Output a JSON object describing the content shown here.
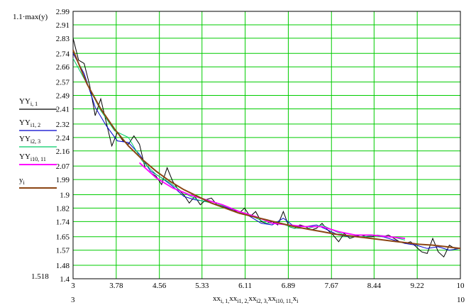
{
  "chart_data": {
    "type": "line",
    "title": "",
    "y_top_label": "1.1·max(y)",
    "y_bottom_label": "1.518",
    "x_left_label": "3",
    "x_right_label": "10",
    "x_axis_label": {
      "parts": [
        {
          "base": "xx",
          "sub": "i, 1"
        },
        {
          "base": "xx",
          "sub": "i1, 2"
        },
        {
          "base": "xx",
          "sub": "i2, 3"
        },
        {
          "base": "xx",
          "sub": "i10, 11"
        },
        {
          "base": "x",
          "sub": "i"
        }
      ]
    },
    "xlim": [
      3,
      10
    ],
    "ylim": [
      1.4,
      2.99
    ],
    "x_ticks": [
      "3",
      "3.78",
      "4.56",
      "5.33",
      "6.11",
      "6.89",
      "7.67",
      "8.44",
      "9.22",
      "10"
    ],
    "y_ticks": [
      "2.99",
      "2.91",
      "2.83",
      "2.74",
      "2.66",
      "2.57",
      "2.49",
      "2.41",
      "2.32",
      "2.24",
      "2.16",
      "2.07",
      "1.99",
      "1.9",
      "1.82",
      "1.74",
      "1.65",
      "1.57",
      "1.48",
      "1.4"
    ],
    "grid": true,
    "legend_position": "left",
    "series": [
      {
        "name": "YY",
        "sub": "i, 1",
        "color": "#000000",
        "x": [
          3.0,
          3.1,
          3.2,
          3.3,
          3.4,
          3.5,
          3.6,
          3.7,
          3.8,
          3.9,
          4.0,
          4.1,
          4.2,
          4.3,
          4.4,
          4.5,
          4.6,
          4.7,
          4.8,
          4.9,
          5.0,
          5.1,
          5.2,
          5.3,
          5.4,
          5.5,
          5.6,
          5.7,
          5.8,
          5.9,
          6.0,
          6.1,
          6.2,
          6.3,
          6.4,
          6.5,
          6.6,
          6.7,
          6.8,
          6.9,
          7.0,
          7.1,
          7.2,
          7.3,
          7.4,
          7.5,
          7.6,
          7.7,
          7.8,
          7.9,
          8.0,
          8.1,
          8.2,
          8.3,
          8.4,
          8.5,
          8.6,
          8.7,
          8.8,
          8.9,
          9.0,
          9.1,
          9.2,
          9.3,
          9.4,
          9.5,
          9.6,
          9.7,
          9.8,
          9.9,
          10.0
        ],
        "y": [
          2.83,
          2.7,
          2.68,
          2.55,
          2.37,
          2.47,
          2.33,
          2.19,
          2.27,
          2.22,
          2.2,
          2.25,
          2.2,
          2.06,
          2.03,
          2.01,
          1.96,
          2.06,
          1.98,
          1.93,
          1.9,
          1.85,
          1.89,
          1.84,
          1.87,
          1.88,
          1.84,
          1.83,
          1.82,
          1.81,
          1.79,
          1.82,
          1.77,
          1.8,
          1.74,
          1.73,
          1.74,
          1.72,
          1.8,
          1.71,
          1.7,
          1.72,
          1.71,
          1.69,
          1.7,
          1.73,
          1.69,
          1.66,
          1.62,
          1.67,
          1.64,
          1.65,
          1.66,
          1.65,
          1.65,
          1.66,
          1.65,
          1.66,
          1.64,
          1.62,
          1.61,
          1.62,
          1.59,
          1.56,
          1.55,
          1.64,
          1.56,
          1.53,
          1.6,
          1.58,
          1.58
        ]
      },
      {
        "name": "YY",
        "sub": "i1, 2",
        "color": "#0000cc",
        "x": [
          3.0,
          3.2,
          3.4,
          3.6,
          3.8,
          4.0,
          4.2,
          4.4,
          4.6,
          4.8,
          5.0,
          5.2,
          5.4,
          5.6,
          5.8,
          6.0,
          6.2,
          6.4,
          6.6,
          6.8,
          7.0,
          7.2,
          7.4,
          7.6,
          7.8,
          8.0,
          8.2,
          8.4,
          8.6,
          8.8,
          9.0,
          9.2,
          9.4,
          9.6,
          9.8,
          10.0
        ],
        "y": [
          2.74,
          2.62,
          2.42,
          2.31,
          2.22,
          2.21,
          2.14,
          2.04,
          2.0,
          1.95,
          1.89,
          1.87,
          1.86,
          1.84,
          1.82,
          1.8,
          1.77,
          1.73,
          1.72,
          1.76,
          1.71,
          1.71,
          1.72,
          1.69,
          1.66,
          1.65,
          1.66,
          1.66,
          1.65,
          1.63,
          1.61,
          1.6,
          1.58,
          1.59,
          1.57,
          1.58
        ]
      },
      {
        "name": "YY",
        "sub": "i2, 3",
        "color": "#00cc66",
        "x": [
          3.0,
          3.25,
          3.5,
          3.75,
          4.0,
          4.25,
          4.5,
          4.75,
          5.0,
          5.25,
          5.5,
          5.75,
          6.0,
          6.25,
          6.5,
          6.75,
          7.0,
          7.25,
          7.5,
          7.75,
          8.0,
          8.25,
          8.5,
          8.75,
          9.0
        ],
        "y": [
          2.71,
          2.56,
          2.4,
          2.28,
          2.24,
          2.1,
          2.02,
          1.97,
          1.91,
          1.87,
          1.85,
          1.83,
          1.8,
          1.77,
          1.73,
          1.73,
          1.7,
          1.7,
          1.72,
          1.68,
          1.65,
          1.65,
          1.66,
          1.65,
          1.63
        ]
      },
      {
        "name": "YY",
        "sub": "i10, 11",
        "color": "#ff00ff",
        "x": [
          4.2,
          4.5,
          4.8,
          5.1,
          5.4,
          5.7,
          6.0,
          6.3,
          6.6,
          6.9,
          7.2,
          7.5,
          7.8,
          8.1,
          8.4,
          8.7,
          9.0
        ],
        "y": [
          2.09,
          2.0,
          1.94,
          1.9,
          1.87,
          1.84,
          1.8,
          1.77,
          1.73,
          1.72,
          1.71,
          1.71,
          1.68,
          1.66,
          1.66,
          1.65,
          1.64
        ]
      },
      {
        "name": "y",
        "sub": "i",
        "color": "#8b4513",
        "x": [
          3.0,
          3.25,
          3.5,
          3.75,
          4.0,
          4.25,
          4.5,
          4.75,
          5.0,
          5.25,
          5.5,
          5.75,
          6.0,
          6.25,
          6.5,
          6.75,
          7.0,
          7.25,
          7.5,
          7.75,
          8.0,
          8.25,
          8.5,
          8.75,
          9.0,
          9.25,
          9.5,
          9.75,
          10.0
        ],
        "y": [
          2.76,
          2.56,
          2.41,
          2.29,
          2.19,
          2.11,
          2.04,
          1.98,
          1.93,
          1.89,
          1.85,
          1.82,
          1.79,
          1.77,
          1.75,
          1.73,
          1.71,
          1.695,
          1.68,
          1.665,
          1.655,
          1.645,
          1.635,
          1.625,
          1.615,
          1.605,
          1.6,
          1.59,
          1.58
        ]
      }
    ]
  }
}
